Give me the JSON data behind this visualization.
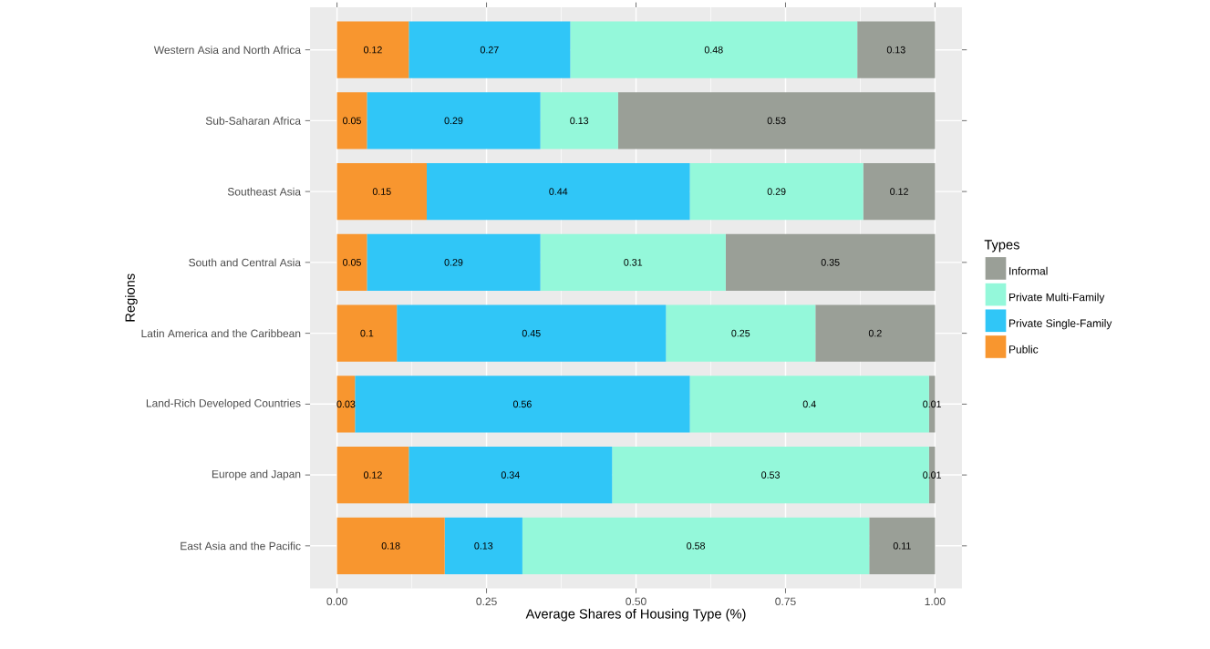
{
  "chart_data": {
    "type": "bar",
    "orientation": "horizontal",
    "stacked": true,
    "xlabel": "Average Shares of Housing Type (%)",
    "ylabel": "Regions",
    "legend_title": "Types",
    "categories": [
      "Western Asia and North Africa",
      "Sub-Saharan Africa",
      "Southeast Asia",
      "South and Central Asia",
      "Latin America and the Caribbean",
      "Land-Rich Developed Countries",
      "Europe and Japan",
      "East Asia and the Pacific"
    ],
    "series": [
      {
        "name": "Public",
        "color": "#f8962f",
        "values": [
          0.12,
          0.05,
          0.15,
          0.05,
          0.1,
          0.03,
          0.12,
          0.18
        ]
      },
      {
        "name": "Private Single-Family",
        "color": "#30c6f7",
        "values": [
          0.27,
          0.29,
          0.44,
          0.29,
          0.45,
          0.56,
          0.34,
          0.13
        ]
      },
      {
        "name": "Private Multi-Family",
        "color": "#94f8da",
        "values": [
          0.48,
          0.13,
          0.29,
          0.31,
          0.25,
          0.4,
          0.53,
          0.58
        ]
      },
      {
        "name": "Informal",
        "color": "#9a9f97",
        "values": [
          0.13,
          0.53,
          0.12,
          0.35,
          0.2,
          0.01,
          0.01,
          0.11
        ]
      }
    ],
    "xlim": [
      -0.045,
      1.045
    ],
    "xticks": [
      {
        "value": 0,
        "label": "0.00"
      },
      {
        "value": 0.25,
        "label": "0.25"
      },
      {
        "value": 0.5,
        "label": "0.50"
      },
      {
        "value": 0.75,
        "label": "0.75"
      },
      {
        "value": 1,
        "label": "1.00"
      }
    ],
    "grid": true,
    "legend": "right",
    "data_labels": true
  }
}
